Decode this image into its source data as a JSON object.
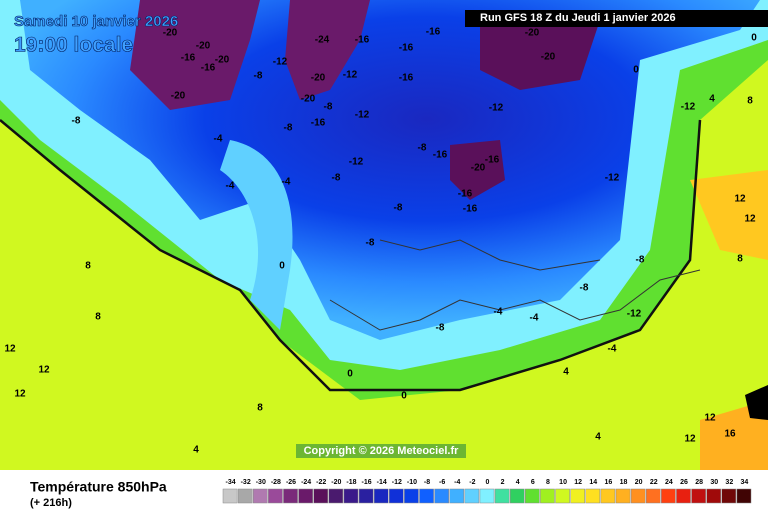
{
  "header": {
    "date": "Samedi 10 janvier 2026",
    "time": "19:00 locale",
    "run": "Run GFS 18 Z du Jeudi 1 janvier 2026"
  },
  "copyright": "Copyright © 2026 Meteociel.fr",
  "map": {
    "contour_labels": [
      -20,
      -20,
      -16,
      -20,
      -16,
      -20,
      -12,
      -8,
      -24,
      -16,
      -20,
      -12,
      -20,
      -8,
      -12,
      -16,
      -8,
      -16,
      -16,
      -16,
      -20,
      -20,
      -12,
      -12,
      -8,
      -4,
      -4,
      -4,
      -12,
      -8,
      -8,
      -16,
      -16,
      -20,
      -16,
      -16,
      -12,
      -8,
      -8,
      0,
      -8,
      -8,
      -4,
      -4,
      -12,
      -8,
      -4,
      0,
      0,
      4,
      8,
      8,
      12,
      12,
      12,
      8,
      4,
      12,
      12,
      8,
      12,
      16,
      12,
      4,
      0,
      4,
      0,
      8
    ]
  },
  "legend": {
    "title": "Température 850hPa",
    "subtitle": "(+ 216h)",
    "values": [
      -34,
      -32,
      -30,
      -28,
      -26,
      -24,
      -22,
      -20,
      -18,
      -16,
      -14,
      -12,
      -10,
      -8,
      -6,
      -4,
      -2,
      0,
      2,
      4,
      6,
      8,
      10,
      12,
      14,
      16,
      18,
      20,
      22,
      24,
      26,
      28,
      30,
      32,
      34
    ],
    "colors": [
      "#c8c8c8",
      "#a8a8a8",
      "#b07ab0",
      "#9a4a9a",
      "#7a2a7a",
      "#6a1a6a",
      "#5a105a",
      "#4a1a6e",
      "#3a1a8a",
      "#2a20a0",
      "#1a28c0",
      "#1030d8",
      "#0a40e8",
      "#1060ff",
      "#2a8aff",
      "#40b0ff",
      "#60d0ff",
      "#80f0ff",
      "#40e0a0",
      "#30d060",
      "#60e030",
      "#a0f020",
      "#d0f820",
      "#f0f020",
      "#ffe020",
      "#ffc820",
      "#ffb020",
      "#ff9020",
      "#ff7020",
      "#ff4010",
      "#e82010",
      "#c01010",
      "#a00a0a",
      "#700808",
      "#400404"
    ]
  }
}
